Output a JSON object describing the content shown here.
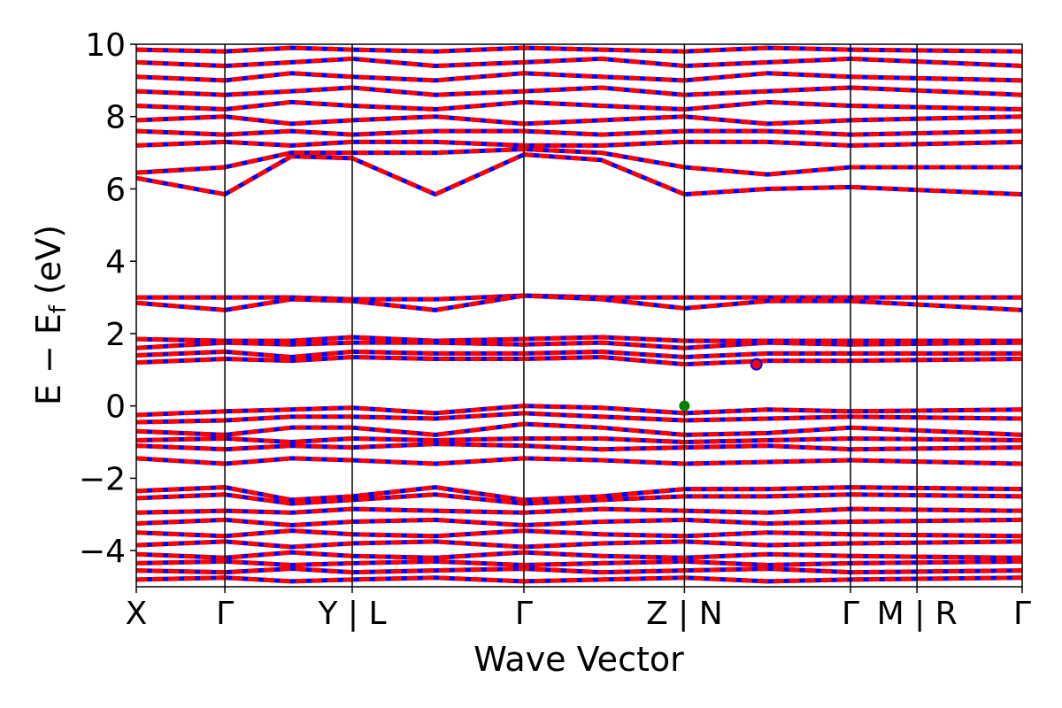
{
  "chart_data": {
    "type": "line",
    "title": "",
    "xlabel": "Wave Vector",
    "ylabel": "E − E",
    "ylabel_sub": "f",
    "ylabel_unit": " (eV)",
    "ylim": [
      -5,
      10
    ],
    "yticks": [
      -4,
      -2,
      0,
      2,
      4,
      6,
      8,
      10
    ],
    "ytick_labels": [
      "−4",
      "−2",
      "0",
      "2",
      "4",
      "6",
      "8",
      "10"
    ],
    "xlim": [
      0,
      8.0
    ],
    "kpoints": [
      0,
      0.8,
      1.95,
      3.5,
      4.95,
      6.45,
      7.05,
      8.0
    ],
    "kpoint_labels": [
      "X",
      "Γ",
      "Y | L",
      "Γ",
      "Z | N",
      "Γ",
      "M | R",
      "Γ"
    ],
    "grid": false,
    "legend": "none",
    "colors": {
      "spin_up": "#0000ff",
      "spin_down": "#ff0000",
      "vbm_marker": "#008000",
      "cbm_marker": "#ff0000",
      "vline": "#000000"
    },
    "series": [
      {
        "y": [
          6.3,
          5.85,
          6.9,
          6.85,
          5.85,
          6.95,
          6.8,
          5.85,
          6.0,
          6.05,
          5.85
        ]
      },
      {
        "y": [
          6.45,
          6.6,
          7.0,
          7.0,
          7.0,
          7.1,
          7.0,
          6.6,
          6.4,
          6.6,
          6.6
        ]
      },
      {
        "y": [
          7.2,
          7.3,
          7.2,
          7.3,
          7.3,
          7.2,
          7.2,
          7.3,
          7.3,
          7.2,
          7.3
        ]
      },
      {
        "y": [
          7.6,
          7.5,
          7.6,
          7.5,
          7.6,
          7.6,
          7.5,
          7.6,
          7.6,
          7.5,
          7.6
        ]
      },
      {
        "y": [
          7.9,
          8.0,
          7.8,
          7.9,
          8.0,
          7.8,
          7.9,
          8.0,
          7.8,
          7.9,
          8.0
        ]
      },
      {
        "y": [
          8.3,
          8.2,
          8.4,
          8.3,
          8.2,
          8.4,
          8.3,
          8.2,
          8.4,
          8.3,
          8.2
        ]
      },
      {
        "y": [
          8.7,
          8.6,
          8.7,
          8.8,
          8.6,
          8.7,
          8.8,
          8.6,
          8.7,
          8.8,
          8.6
        ]
      },
      {
        "y": [
          9.1,
          9.0,
          9.2,
          9.1,
          9.0,
          9.2,
          9.1,
          9.0,
          9.2,
          9.1,
          9.0
        ]
      },
      {
        "y": [
          9.5,
          9.4,
          9.5,
          9.6,
          9.4,
          9.5,
          9.6,
          9.4,
          9.5,
          9.6,
          9.4
        ]
      },
      {
        "y": [
          9.85,
          9.8,
          9.9,
          9.85,
          9.8,
          9.9,
          9.85,
          9.8,
          9.9,
          9.85,
          9.8
        ]
      },
      {
        "y": [
          3.0,
          3.0,
          3.0,
          2.95,
          2.95,
          3.05,
          3.0,
          3.0,
          3.0,
          3.0,
          3.0
        ]
      },
      {
        "y": [
          2.85,
          2.65,
          2.95,
          2.9,
          2.65,
          3.05,
          2.95,
          2.7,
          2.9,
          2.9,
          2.65
        ]
      },
      {
        "y": [
          1.85,
          1.8,
          1.8,
          1.9,
          1.8,
          1.85,
          1.9,
          1.8,
          1.8,
          1.8,
          1.8
        ]
      },
      {
        "y": [
          1.6,
          1.75,
          1.7,
          1.75,
          1.75,
          1.7,
          1.75,
          1.6,
          1.75,
          1.7,
          1.75
        ]
      },
      {
        "y": [
          1.4,
          1.5,
          1.35,
          1.5,
          1.45,
          1.45,
          1.5,
          1.35,
          1.45,
          1.45,
          1.45
        ]
      },
      {
        "y": [
          1.2,
          1.3,
          1.25,
          1.35,
          1.3,
          1.3,
          1.35,
          1.15,
          1.25,
          1.25,
          1.3
        ]
      },
      {
        "y": [
          -0.25,
          -0.15,
          -0.1,
          -0.05,
          -0.2,
          0.0,
          -0.05,
          -0.2,
          -0.1,
          -0.15,
          -0.1
        ]
      },
      {
        "y": [
          -0.45,
          -0.4,
          -0.3,
          -0.3,
          -0.35,
          -0.2,
          -0.3,
          -0.4,
          -0.35,
          -0.3,
          -0.35
        ]
      },
      {
        "y": [
          -0.7,
          -0.8,
          -0.6,
          -0.6,
          -0.8,
          -0.5,
          -0.6,
          -0.8,
          -0.75,
          -0.6,
          -0.8
        ]
      },
      {
        "y": [
          -0.95,
          -0.9,
          -1.0,
          -0.9,
          -0.95,
          -0.9,
          -0.9,
          -1.0,
          -0.95,
          -0.9,
          -0.95
        ]
      },
      {
        "y": [
          -1.1,
          -1.2,
          -1.1,
          -1.15,
          -1.05,
          -1.1,
          -1.2,
          -1.15,
          -1.1,
          -1.2,
          -1.15
        ]
      },
      {
        "y": [
          -1.45,
          -1.6,
          -1.45,
          -1.5,
          -1.6,
          -1.45,
          -1.5,
          -1.6,
          -1.55,
          -1.5,
          -1.6
        ]
      },
      {
        "y": [
          -2.35,
          -2.25,
          -2.6,
          -2.5,
          -2.25,
          -2.6,
          -2.5,
          -2.3,
          -2.3,
          -2.25,
          -2.3
        ]
      },
      {
        "y": [
          -2.55,
          -2.45,
          -2.7,
          -2.6,
          -2.45,
          -2.7,
          -2.6,
          -2.5,
          -2.5,
          -2.45,
          -2.5
        ]
      },
      {
        "y": [
          -2.95,
          -2.9,
          -2.95,
          -2.85,
          -2.9,
          -2.95,
          -2.85,
          -2.9,
          -2.95,
          -2.85,
          -2.9
        ]
      },
      {
        "y": [
          -3.25,
          -3.15,
          -3.3,
          -3.2,
          -3.15,
          -3.3,
          -3.2,
          -3.15,
          -3.25,
          -3.2,
          -3.15
        ]
      },
      {
        "y": [
          -3.5,
          -3.6,
          -3.45,
          -3.55,
          -3.6,
          -3.45,
          -3.55,
          -3.6,
          -3.5,
          -3.55,
          -3.6
        ]
      },
      {
        "y": [
          -3.85,
          -3.75,
          -3.9,
          -3.8,
          -3.75,
          -3.9,
          -3.8,
          -3.75,
          -3.85,
          -3.8,
          -3.75
        ]
      },
      {
        "y": [
          -4.1,
          -4.2,
          -4.05,
          -4.15,
          -4.2,
          -4.05,
          -4.15,
          -4.2,
          -4.1,
          -4.15,
          -4.2
        ]
      },
      {
        "y": [
          -4.35,
          -4.3,
          -4.4,
          -4.35,
          -4.3,
          -4.4,
          -4.35,
          -4.3,
          -4.4,
          -4.35,
          -4.3
        ]
      },
      {
        "y": [
          -4.55,
          -4.6,
          -4.5,
          -4.6,
          -4.55,
          -4.5,
          -4.6,
          -4.55,
          -4.5,
          -4.6,
          -4.55
        ]
      },
      {
        "y": [
          -4.8,
          -4.75,
          -4.85,
          -4.8,
          -4.75,
          -4.85,
          -4.8,
          -4.75,
          -4.85,
          -4.8,
          -4.75
        ]
      }
    ],
    "markers": [
      {
        "name": "vbm",
        "x": 4.95,
        "y": 0.0
      },
      {
        "name": "cbm",
        "x": 5.6,
        "y": 1.15
      }
    ]
  }
}
